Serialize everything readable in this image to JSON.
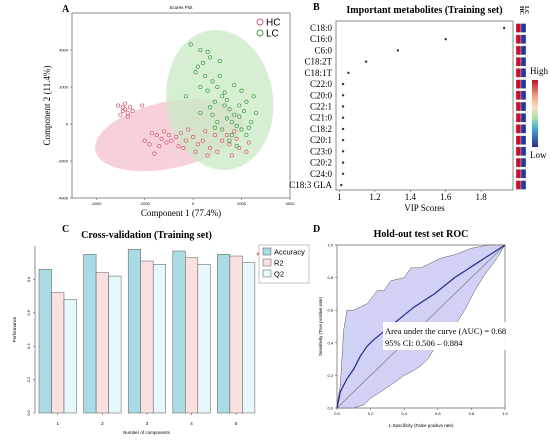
{
  "panels": {
    "a": {
      "letter": "A"
    },
    "b": {
      "letter": "B"
    },
    "c": {
      "letter": "C"
    },
    "d": {
      "letter": "D"
    }
  },
  "chart_data": [
    {
      "id": "A",
      "type": "scatter",
      "title": "Scores Plot",
      "xlabel": "Component 1 (77.4%)",
      "ylabel": "Component 2 (11.4%)",
      "xlim": [
        -5000,
        4000
      ],
      "ylim": [
        -4000,
        6000
      ],
      "xticks": [
        "-4000",
        "-2000",
        "0",
        "2000",
        "4000"
      ],
      "yticks": [
        "-4000",
        "-2000",
        "0",
        "2000",
        "4000"
      ],
      "legend_position": "top-right",
      "colors": {
        "HC": "#d6536d",
        "LC": "#3a9a3a",
        "HC_fill": "#f4c2cc",
        "LC_fill": "#c8e9c4"
      },
      "ellipses": [
        {
          "name": "HC",
          "cx": -1000,
          "cy": -600,
          "rx": 3100,
          "ry": 1800,
          "angle_deg": 12
        },
        {
          "name": "LC",
          "cx": 1100,
          "cy": 1300,
          "rx": 2200,
          "ry": 3800,
          "angle_deg": 8
        }
      ],
      "series": [
        {
          "name": "HC",
          "points": [
            [
              -3100,
              1000
            ],
            [
              -2900,
              900
            ],
            [
              -2900,
              700
            ],
            [
              -3000,
              500
            ],
            [
              -2800,
              800
            ],
            [
              -2700,
              600
            ],
            [
              -2600,
              900
            ],
            [
              -2700,
              400
            ],
            [
              -2500,
              700
            ],
            [
              -2800,
              1100
            ],
            [
              -1700,
              -500
            ],
            [
              -1500,
              -600
            ],
            [
              -1300,
              -800
            ],
            [
              -1200,
              -400
            ],
            [
              -1000,
              -600
            ],
            [
              -900,
              -900
            ],
            [
              -700,
              -700
            ],
            [
              -500,
              -500
            ],
            [
              -300,
              -900
            ],
            [
              0,
              -700
            ],
            [
              200,
              -1100
            ],
            [
              400,
              -900
            ],
            [
              700,
              -1300
            ],
            [
              900,
              -600
            ],
            [
              1200,
              -900
            ],
            [
              1500,
              -1100
            ],
            [
              1900,
              -1300
            ],
            [
              2200,
              -1500
            ],
            [
              1600,
              -1700
            ],
            [
              2300,
              -1000
            ],
            [
              -1100,
              -1000
            ],
            [
              -400,
              -1300
            ],
            [
              100,
              -1500
            ],
            [
              -2000,
              -900
            ],
            [
              -1800,
              -1100
            ],
            [
              -1400,
              -1200
            ],
            [
              600,
              -1700
            ],
            [
              1000,
              -1500
            ],
            [
              1400,
              -600
            ],
            [
              1800,
              -800
            ],
            [
              -600,
              -1200
            ],
            [
              1700,
              -400
            ],
            [
              -2100,
              1000
            ],
            [
              -200,
              -300
            ],
            [
              500,
              -400
            ],
            [
              -1600,
              -1600
            ]
          ]
        },
        {
          "name": "LC",
          "points": [
            [
              -100,
              4300
            ],
            [
              300,
              4000
            ],
            [
              700,
              3600
            ],
            [
              400,
              3300
            ],
            [
              100,
              2800
            ],
            [
              500,
              2600
            ],
            [
              800,
              2300
            ],
            [
              300,
              2000
            ],
            [
              600,
              1800
            ],
            [
              1000,
              2000
            ],
            [
              1200,
              1500
            ],
            [
              900,
              1200
            ],
            [
              1300,
              1000
            ],
            [
              1500,
              800
            ],
            [
              1700,
              500
            ],
            [
              1400,
              300
            ],
            [
              1600,
              100
            ],
            [
              1900,
              400
            ],
            [
              2100,
              700
            ],
            [
              1800,
              -100
            ],
            [
              2000,
              -300
            ],
            [
              1600,
              -600
            ],
            [
              1200,
              -300
            ],
            [
              1000,
              100
            ],
            [
              800,
              500
            ],
            [
              1300,
              1700
            ],
            [
              700,
              900
            ],
            [
              300,
              600
            ],
            [
              2200,
              1200
            ],
            [
              2500,
              1500
            ],
            [
              2600,
              600
            ],
            [
              2400,
              100
            ],
            [
              1500,
              -900
            ],
            [
              2200,
              -600
            ],
            [
              1100,
              2600
            ],
            [
              1700,
              2100
            ],
            [
              2000,
              1800
            ],
            [
              200,
              3100
            ],
            [
              600,
              3900
            ],
            [
              1100,
              3400
            ],
            [
              -300,
              1500
            ],
            [
              1800,
              -1200
            ],
            [
              2300,
              -200
            ],
            [
              900,
              -200
            ],
            [
              1400,
              1300
            ],
            [
              1900,
              1000
            ]
          ]
        }
      ]
    },
    {
      "id": "B",
      "type": "scatter",
      "title": "Important metabolites (Training set)",
      "xlabel": "VIP Scores",
      "xlim": [
        0.98,
        1.98
      ],
      "xticks": [
        "1",
        "1.2",
        "1.4",
        "1.6",
        "1.8"
      ],
      "categories": [
        "C18:0",
        "C16:0",
        "C6:0",
        "C18:2T",
        "C18:1T",
        "C22:0",
        "C20:0",
        "C22:1",
        "C21:0",
        "C18:2",
        "C20:1",
        "C23:0",
        "C20:2",
        "C24:0",
        "C18:3 GLA"
      ],
      "values": [
        1.93,
        1.6,
        1.33,
        1.15,
        1.05,
        1.02,
        1.02,
        1.02,
        1.02,
        1.02,
        1.02,
        1.02,
        1.02,
        1.02,
        1.01
      ],
      "heatmap_columns": [
        "HC",
        "LC"
      ],
      "heatmap_levels": {
        "HC": [
          "high",
          "high",
          "high",
          "high",
          "high",
          "high",
          "high",
          "high",
          "high",
          "high",
          "high",
          "high",
          "high",
          "high",
          "high"
        ],
        "LC": [
          "low",
          "low",
          "low",
          "low",
          "low",
          "low",
          "low",
          "low",
          "low",
          "low",
          "low",
          "low",
          "low",
          "low",
          "low"
        ]
      },
      "heat_colors": {
        "high": "#c8102e",
        "low": "#1f3a9e"
      },
      "colorbar": {
        "high_label": "High",
        "low_label": "Low"
      }
    },
    {
      "id": "C",
      "type": "bar",
      "title": "Cross-validation (Training set)",
      "xlabel": "Number of components",
      "ylabel": "Performance",
      "ylim": [
        0,
        1.0
      ],
      "yticks": [
        "0.0",
        "0.2",
        "0.4",
        "0.6",
        "0.8"
      ],
      "categories": [
        "1",
        "2",
        "3",
        "4",
        "5"
      ],
      "series": [
        {
          "name": "Accuracy",
          "color": "#aadbe4",
          "values": [
            0.86,
            0.95,
            0.98,
            0.97,
            0.95
          ]
        },
        {
          "name": "R2",
          "color": "#fbe0e0",
          "values": [
            0.72,
            0.84,
            0.91,
            0.93,
            0.94
          ]
        },
        {
          "name": "Q2",
          "color": "#e7f8fc",
          "values": [
            0.68,
            0.82,
            0.89,
            0.89,
            0.9
          ]
        }
      ],
      "marker": {
        "category": "5",
        "label": "*",
        "color": "#cc2222"
      },
      "legend_position": "right"
    },
    {
      "id": "D",
      "type": "line",
      "title": "Hold-out test set ROC",
      "xlabel": "1-Specificity (False positive rate)",
      "ylabel": "Sensitivity (True positive rate)",
      "xlim": [
        0,
        1
      ],
      "ylim": [
        0,
        1
      ],
      "xticks": [
        "0.0",
        "0.2",
        "0.4",
        "0.6",
        "0.8",
        "1.0"
      ],
      "yticks": [
        "0.0",
        "0.2",
        "0.4",
        "0.6",
        "0.8",
        "1.0"
      ],
      "roc": [
        [
          0,
          0
        ],
        [
          0.02,
          0.1
        ],
        [
          0.06,
          0.18
        ],
        [
          0.1,
          0.24
        ],
        [
          0.14,
          0.32
        ],
        [
          0.18,
          0.38
        ],
        [
          0.22,
          0.42
        ],
        [
          0.28,
          0.47
        ],
        [
          0.34,
          0.52
        ],
        [
          0.4,
          0.57
        ],
        [
          0.46,
          0.62
        ],
        [
          0.52,
          0.66
        ],
        [
          0.58,
          0.7
        ],
        [
          0.64,
          0.75
        ],
        [
          0.7,
          0.8
        ],
        [
          0.76,
          0.84
        ],
        [
          0.82,
          0.88
        ],
        [
          0.88,
          0.92
        ],
        [
          0.94,
          0.96
        ],
        [
          1,
          1
        ]
      ],
      "ci_upper": [
        [
          0,
          0.02
        ],
        [
          0.02,
          0.14
        ],
        [
          0.04,
          0.48
        ],
        [
          0.06,
          0.6
        ],
        [
          0.1,
          0.6
        ],
        [
          0.18,
          0.64
        ],
        [
          0.24,
          0.72
        ],
        [
          0.28,
          0.72
        ],
        [
          0.32,
          0.78
        ],
        [
          0.4,
          0.8
        ],
        [
          0.44,
          0.86
        ],
        [
          0.5,
          0.86
        ],
        [
          0.54,
          0.88
        ],
        [
          0.62,
          0.92
        ],
        [
          0.7,
          0.94
        ],
        [
          0.8,
          0.98
        ],
        [
          0.9,
          1.0
        ],
        [
          1,
          1
        ]
      ],
      "ci_lower": [
        [
          0,
          0
        ],
        [
          0.04,
          0
        ],
        [
          0.1,
          0
        ],
        [
          0.16,
          0.02
        ],
        [
          0.2,
          0.06
        ],
        [
          0.26,
          0.1
        ],
        [
          0.32,
          0.14
        ],
        [
          0.4,
          0.2
        ],
        [
          0.44,
          0.22
        ],
        [
          0.5,
          0.26
        ],
        [
          0.54,
          0.3
        ],
        [
          0.6,
          0.4
        ],
        [
          0.64,
          0.46
        ],
        [
          0.7,
          0.5
        ],
        [
          0.76,
          0.6
        ],
        [
          0.82,
          0.72
        ],
        [
          0.88,
          0.82
        ],
        [
          0.94,
          0.9
        ],
        [
          1,
          1
        ]
      ],
      "auc_text": "Area under the curve (AUC) = 0.68",
      "ci_text": "95% CI: 0.506 – 0.884",
      "colors": {
        "line": "#1f2c8c",
        "band": "#c6c6f2"
      }
    }
  ]
}
